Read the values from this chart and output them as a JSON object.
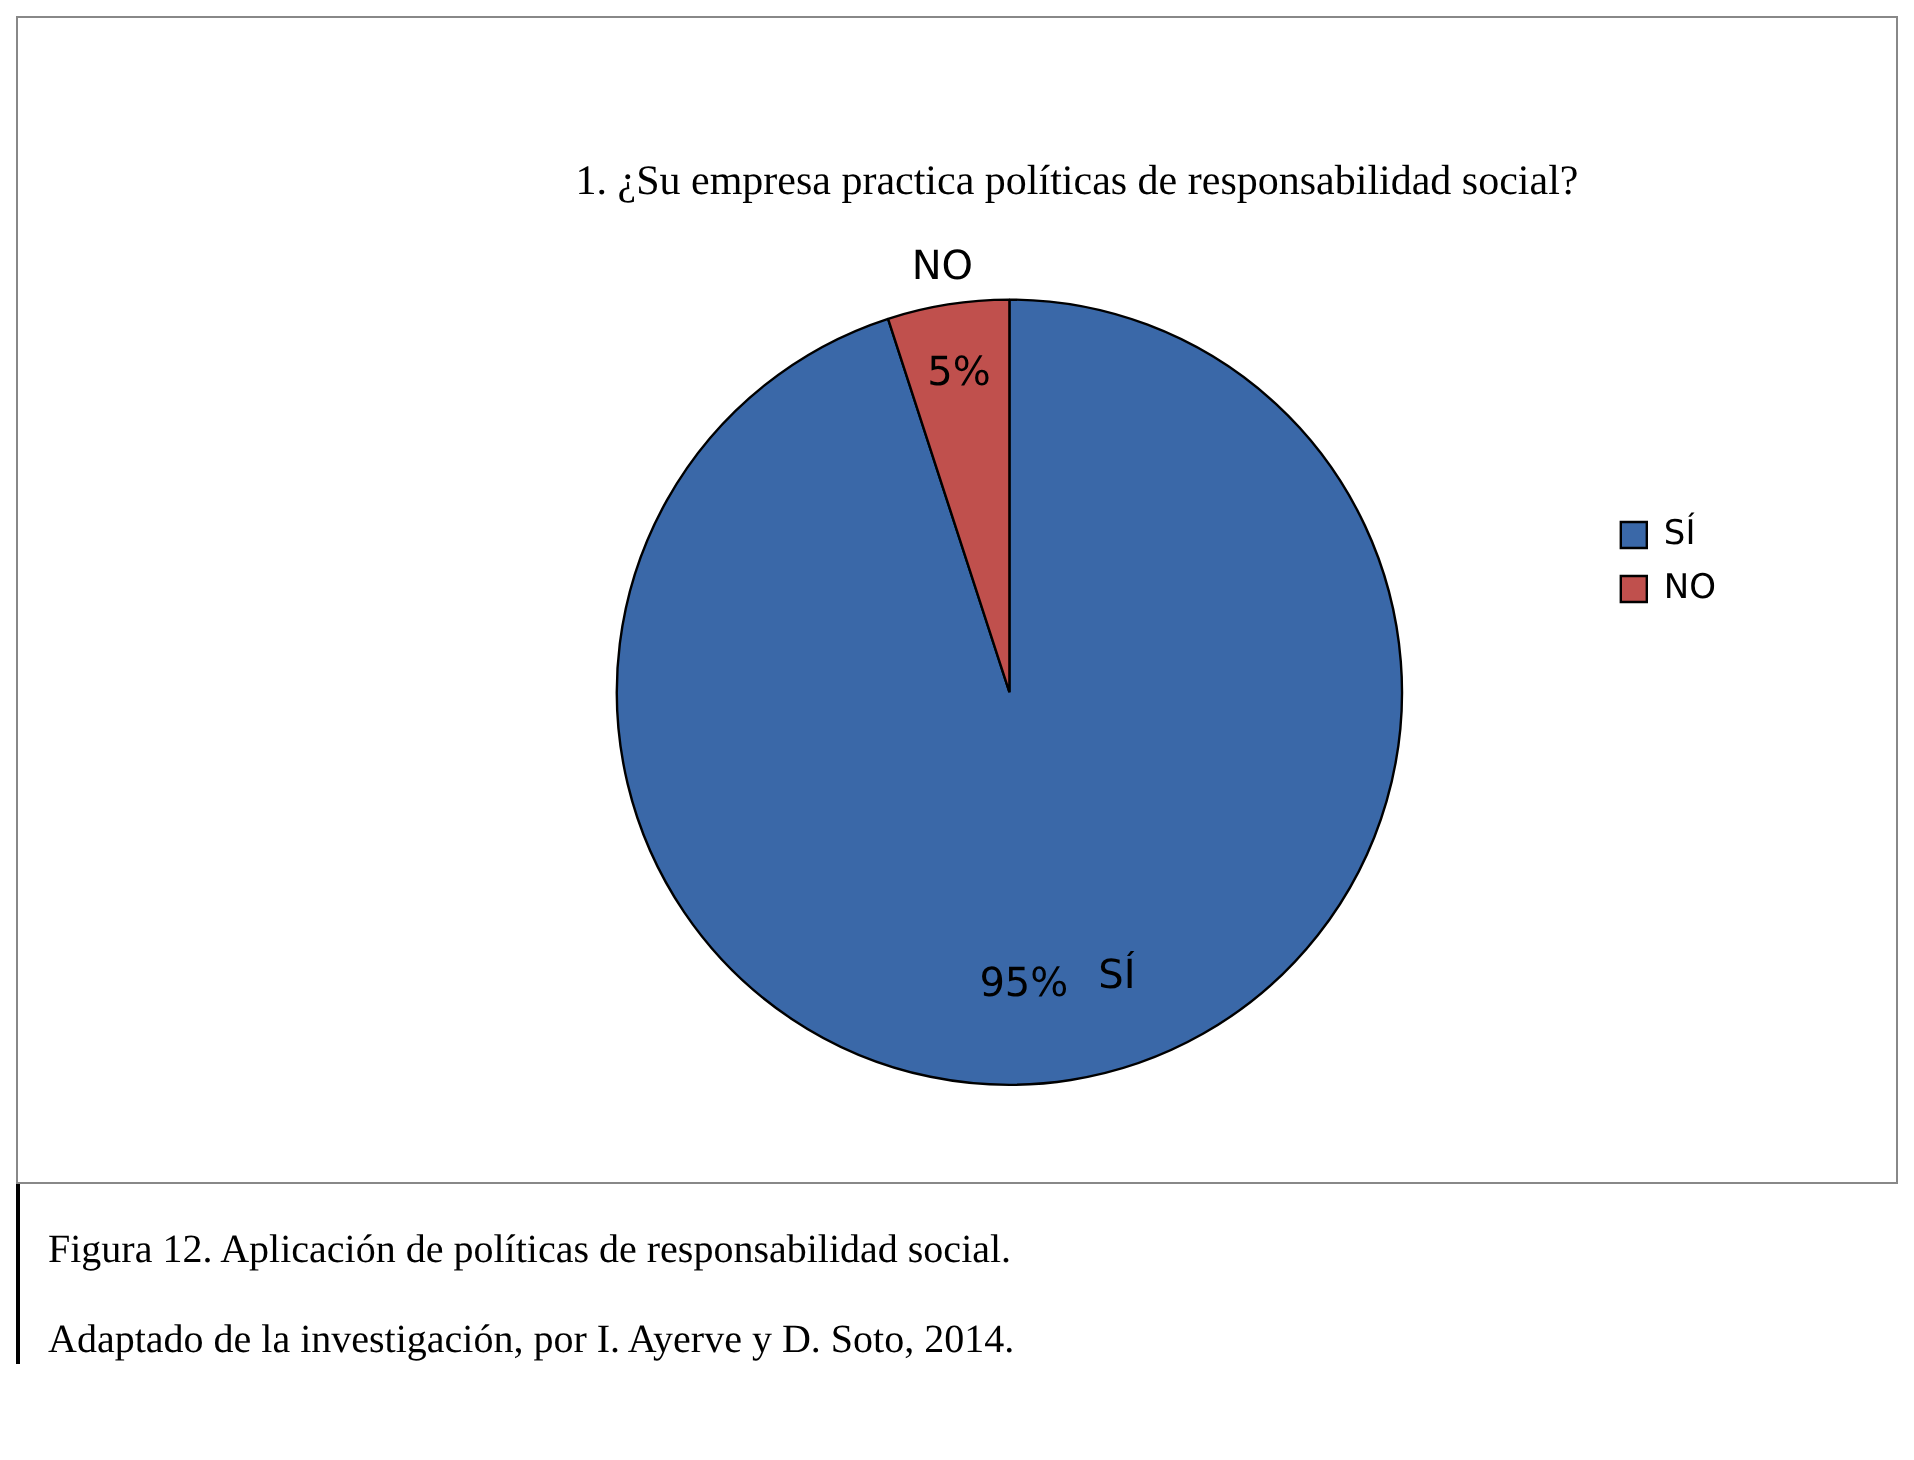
{
  "chart_data": {
    "type": "pie",
    "title": "1. ¿Su empresa practica políticas de responsabilidad social?",
    "categories": [
      "SÍ",
      "NO"
    ],
    "values": [
      95,
      5
    ],
    "value_labels": [
      "95%",
      "5%"
    ],
    "colors": [
      "#3a68a8",
      "#c0504d"
    ],
    "legend": "right",
    "annotations": [
      "Figura 12. Aplicación de políticas de responsabilidad social.",
      "Adaptado de la investigación, por I. Ayerve y D. Soto, 2014."
    ]
  }
}
